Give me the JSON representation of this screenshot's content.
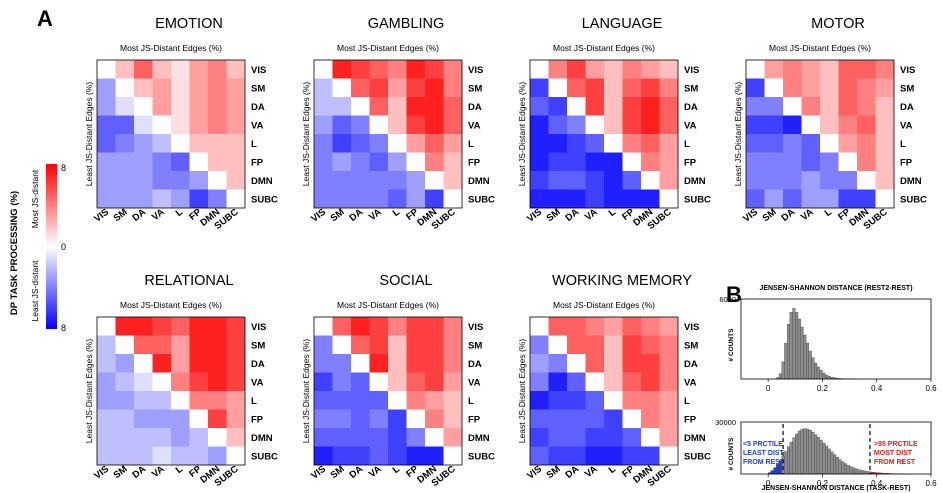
{
  "panel_a_letter": "A",
  "panel_b_letter": "B",
  "colorbar": {
    "title": "DP TASK PROCESSING (%)",
    "top_label": "Most JS-distant",
    "bottom_label": "Least JS-distant",
    "tick_top": "8",
    "tick_mid": "0",
    "tick_bottom": "8",
    "colors": {
      "high": "#ff0000",
      "mid": "#ffffff",
      "low": "#0000ff"
    }
  },
  "matrix_axis": {
    "top_label": "Most JS-Distant Edges (%)",
    "left_label": "Least JS-Distant Edges (%)"
  },
  "networks": [
    "VIS",
    "SM",
    "DA",
    "VA",
    "L",
    "FP",
    "DMN",
    "SUBC"
  ],
  "chart_data": [
    {
      "type": "heatmap",
      "title": "EMOTION",
      "range": [
        -8,
        8
      ],
      "diagonal": "white",
      "rows": [
        [
          0,
          2,
          5,
          2,
          1,
          3,
          4,
          2
        ],
        [
          -3,
          0,
          2,
          3,
          1,
          3,
          4,
          3
        ],
        [
          -3,
          -1,
          0,
          3,
          1,
          3,
          4,
          3
        ],
        [
          -5,
          -5,
          -1,
          0,
          1,
          3,
          4,
          3
        ],
        [
          -5,
          -4,
          -3,
          -2,
          0,
          2,
          2,
          2
        ],
        [
          -3,
          -3,
          -3,
          -4,
          -5,
          0,
          2,
          2
        ],
        [
          -3,
          -3,
          -3,
          -4,
          -4,
          -3,
          0,
          2
        ],
        [
          -3,
          -3,
          -3,
          -2,
          -3,
          -6,
          -4,
          0
        ]
      ]
    },
    {
      "type": "heatmap",
      "title": "GAMBLING",
      "range": [
        -8,
        8
      ],
      "diagonal": "white",
      "rows": [
        [
          0,
          7,
          6,
          5,
          4,
          7,
          6,
          4
        ],
        [
          -2,
          0,
          5,
          6,
          3,
          6,
          7,
          4
        ],
        [
          -2,
          -2,
          0,
          5,
          2,
          7,
          7,
          5
        ],
        [
          -3,
          -5,
          -4,
          0,
          2,
          6,
          7,
          5
        ],
        [
          -4,
          -6,
          -5,
          -4,
          0,
          3,
          5,
          3
        ],
        [
          -4,
          -3,
          -4,
          -5,
          -3,
          0,
          4,
          2
        ],
        [
          -4,
          -4,
          -4,
          -4,
          -4,
          -3,
          0,
          2
        ],
        [
          -4,
          -4,
          -4,
          -4,
          -5,
          -3,
          -6,
          0
        ]
      ]
    },
    {
      "type": "heatmap",
      "title": "LANGUAGE",
      "range": [
        -8,
        8
      ],
      "diagonal": "white",
      "rows": [
        [
          0,
          4,
          6,
          3,
          2,
          4,
          3,
          2
        ],
        [
          -6,
          0,
          5,
          6,
          2,
          5,
          6,
          4
        ],
        [
          -5,
          -6,
          0,
          6,
          2,
          6,
          7,
          5
        ],
        [
          -7,
          -5,
          -4,
          0,
          2,
          6,
          7,
          5
        ],
        [
          -7,
          -7,
          -6,
          -5,
          0,
          4,
          5,
          3
        ],
        [
          -7,
          -6,
          -6,
          -7,
          -7,
          0,
          4,
          3
        ],
        [
          -6,
          -5,
          -5,
          -6,
          -7,
          -5,
          0,
          3
        ],
        [
          -7,
          -7,
          -7,
          -6,
          -7,
          -7,
          -7,
          0
        ]
      ]
    },
    {
      "type": "heatmap",
      "title": "MOTOR",
      "range": [
        -8,
        8
      ],
      "diagonal": "white",
      "rows": [
        [
          0,
          3,
          4,
          3,
          2,
          5,
          5,
          4
        ],
        [
          -6,
          0,
          4,
          3,
          2,
          5,
          4,
          3
        ],
        [
          -4,
          -4,
          0,
          4,
          2,
          5,
          4,
          2
        ],
        [
          -6,
          -6,
          -7,
          0,
          2,
          4,
          5,
          2
        ],
        [
          -5,
          -5,
          -4,
          -5,
          0,
          3,
          4,
          2
        ],
        [
          -4,
          -4,
          -4,
          -5,
          -4,
          0,
          4,
          2
        ],
        [
          -4,
          -4,
          -4,
          -3,
          -4,
          -4,
          0,
          2
        ],
        [
          -5,
          -3,
          -5,
          -3,
          -3,
          -6,
          -6,
          0
        ]
      ]
    },
    {
      "type": "heatmap",
      "title": "RELATIONAL",
      "range": [
        -8,
        8
      ],
      "diagonal": "white",
      "rows": [
        [
          0,
          7,
          7,
          6,
          5,
          7,
          7,
          6
        ],
        [
          -2,
          0,
          5,
          5,
          3,
          7,
          7,
          6
        ],
        [
          -2,
          -3,
          0,
          7,
          3,
          7,
          7,
          6
        ],
        [
          -3,
          -2,
          -1,
          0,
          4,
          6,
          7,
          6
        ],
        [
          -3,
          -3,
          -2,
          -2,
          0,
          4,
          4,
          3
        ],
        [
          -2,
          -2,
          -3,
          -3,
          -3,
          0,
          6,
          3
        ],
        [
          -2,
          -2,
          -2,
          -2,
          -3,
          -2,
          0,
          2
        ],
        [
          -2,
          -2,
          -2,
          -1,
          -2,
          -2,
          -3,
          0
        ]
      ]
    },
    {
      "type": "heatmap",
      "title": "SOCIAL",
      "range": [
        -8,
        8
      ],
      "diagonal": "white",
      "rows": [
        [
          0,
          5,
          7,
          6,
          4,
          6,
          6,
          4
        ],
        [
          -4,
          0,
          5,
          6,
          2,
          6,
          6,
          4
        ],
        [
          -4,
          -4,
          0,
          7,
          2,
          6,
          6,
          4
        ],
        [
          -6,
          -4,
          -5,
          0,
          2,
          5,
          6,
          3
        ],
        [
          -5,
          -5,
          -5,
          -5,
          0,
          4,
          3,
          2
        ],
        [
          -4,
          -4,
          -5,
          -4,
          -6,
          0,
          4,
          2
        ],
        [
          -5,
          -5,
          -5,
          -5,
          -6,
          -4,
          0,
          3
        ],
        [
          -7,
          -6,
          -6,
          -5,
          -6,
          -7,
          -7,
          0
        ]
      ]
    },
    {
      "type": "heatmap",
      "title": "WORKING MEMORY",
      "range": [
        -8,
        8
      ],
      "diagonal": "white",
      "rows": [
        [
          0,
          5,
          5,
          4,
          3,
          5,
          4,
          3
        ],
        [
          -4,
          0,
          5,
          5,
          2,
          6,
          5,
          4
        ],
        [
          -3,
          -4,
          0,
          5,
          2,
          6,
          6,
          4
        ],
        [
          -4,
          -7,
          -5,
          0,
          2,
          5,
          6,
          4
        ],
        [
          -7,
          -6,
          -6,
          -5,
          0,
          4,
          4,
          3
        ],
        [
          -5,
          -5,
          -5,
          -5,
          -6,
          0,
          4,
          3
        ],
        [
          -6,
          -5,
          -5,
          -6,
          -6,
          -5,
          0,
          3
        ],
        [
          -5,
          -6,
          -6,
          -7,
          -7,
          -6,
          -6,
          0
        ]
      ]
    },
    {
      "type": "bar",
      "subtype": "histogram",
      "title": "JENSEN-SHANNON DISTANCE (REST2-REST)",
      "ylabel": "# COUNTS",
      "xlim": [
        -0.1,
        0.6
      ],
      "ylim": [
        0,
        6000
      ],
      "xticks": [
        "0",
        "0.2",
        "0.4",
        "0.6"
      ],
      "yticks": [
        "6000"
      ],
      "bin_width": 0.01,
      "bin_starts": [
        0.03,
        0.04,
        0.05,
        0.06,
        0.07,
        0.08,
        0.09,
        0.1,
        0.11,
        0.12,
        0.13,
        0.14,
        0.15,
        0.16,
        0.17,
        0.18,
        0.19,
        0.2,
        0.21,
        0.22,
        0.23,
        0.24,
        0.25,
        0.26,
        0.27,
        0.28,
        0.29,
        0.3,
        0.31,
        0.32
      ],
      "values": [
        100,
        400,
        1300,
        2700,
        4100,
        5000,
        5300,
        5000,
        4500,
        3900,
        3300,
        2700,
        2100,
        1600,
        1200,
        900,
        650,
        450,
        300,
        200,
        140,
        90,
        60,
        40,
        25,
        15,
        10,
        6,
        4,
        2
      ]
    },
    {
      "type": "bar",
      "subtype": "histogram",
      "title": "JENSEN-SHANNON DISTANCE (TASK-REST)",
      "ylabel": "# COUNTS",
      "xlim": [
        -0.1,
        0.6
      ],
      "ylim": [
        0,
        30000
      ],
      "xticks": [
        "0",
        "0.2",
        "0.4",
        "0.6"
      ],
      "yticks": [
        "30000"
      ],
      "bin_width": 0.01,
      "bin_starts": [
        0.0,
        0.01,
        0.02,
        0.03,
        0.04,
        0.05,
        0.06,
        0.07,
        0.08,
        0.09,
        0.1,
        0.11,
        0.12,
        0.13,
        0.14,
        0.15,
        0.16,
        0.17,
        0.18,
        0.19,
        0.2,
        0.21,
        0.22,
        0.23,
        0.24,
        0.25,
        0.26,
        0.27,
        0.28,
        0.29,
        0.3,
        0.31,
        0.32,
        0.33,
        0.34,
        0.35,
        0.36,
        0.37,
        0.38,
        0.39,
        0.4,
        0.41,
        0.42,
        0.43,
        0.44,
        0.45,
        0.46,
        0.47,
        0.48,
        0.49,
        0.5,
        0.51,
        0.52
      ],
      "values": [
        800,
        2000,
        3700,
        5600,
        7800,
        10200,
        13000,
        15700,
        18400,
        21000,
        23100,
        24800,
        25800,
        26200,
        26000,
        25300,
        24100,
        22700,
        21200,
        19600,
        17900,
        16200,
        14500,
        12800,
        11200,
        9700,
        8300,
        7100,
        6000,
        5100,
        4300,
        3600,
        3000,
        2500,
        2100,
        1800,
        1500,
        1250,
        1050,
        880,
        730,
        600,
        490,
        400,
        320,
        250,
        190,
        140,
        100,
        70,
        45,
        25,
        10
      ],
      "thresholds": [
        0.055,
        0.375
      ],
      "colors": {
        "low": "#1f3fd8",
        "mid": "#8c8c8c",
        "high": "#dd1f1f"
      },
      "annotations": [
        {
          "side": "left",
          "lines": [
            "<5 PRCTILE",
            "LEAST DIST",
            "FROM REST"
          ]
        },
        {
          "side": "right",
          "lines": [
            ">95 PRCTILE",
            "MOST DIST",
            "FROM REST"
          ]
        }
      ]
    }
  ]
}
